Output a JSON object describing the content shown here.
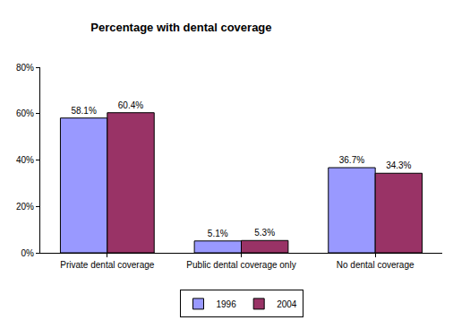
{
  "chart_data": {
    "type": "bar",
    "title": "Percentage with dental coverage",
    "categories": [
      "Private dental coverage",
      "Public dental coverage only",
      "No dental coverage"
    ],
    "series": [
      {
        "name": "1996",
        "color": "#9999ff",
        "values": [
          58.1,
          5.1,
          36.7
        ],
        "value_labels": [
          "58.1%",
          "5.1%",
          "36.7%"
        ]
      },
      {
        "name": "2004",
        "color": "#993366",
        "values": [
          60.4,
          5.3,
          34.3
        ],
        "value_labels": [
          "60.4%",
          "5.3%",
          "34.3%"
        ]
      }
    ],
    "ylim": [
      0,
      80
    ],
    "yticks": [
      {
        "value": 0,
        "label": "0%"
      },
      {
        "value": 20,
        "label": "20%"
      },
      {
        "value": 40,
        "label": "40%"
      },
      {
        "value": 60,
        "label": "60%"
      },
      {
        "value": 80,
        "label": "80%"
      }
    ],
    "grid": false,
    "legend": "bottom",
    "data_labels": true
  }
}
